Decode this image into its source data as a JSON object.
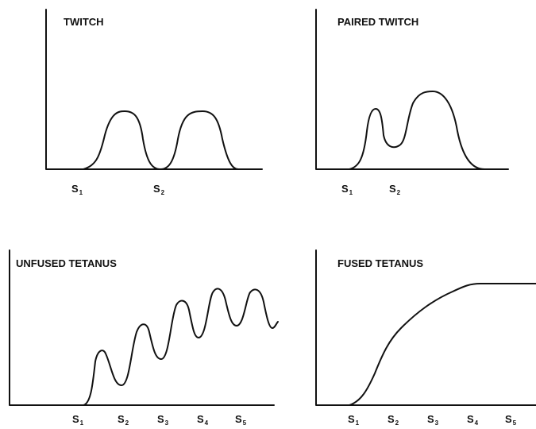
{
  "panels": [
    {
      "title": "TWITCH",
      "stimuli": [
        {
          "base": "S",
          "sub": "1"
        },
        {
          "base": "S",
          "sub": "2"
        }
      ]
    },
    {
      "title": "PAIRED TWITCH",
      "stimuli": [
        {
          "base": "S",
          "sub": "1"
        },
        {
          "base": "S",
          "sub": "2"
        }
      ]
    },
    {
      "title": "UNFUSED TETANUS",
      "stimuli": [
        {
          "base": "S",
          "sub": "1"
        },
        {
          "base": "S",
          "sub": "2"
        },
        {
          "base": "S",
          "sub": "3"
        },
        {
          "base": "S",
          "sub": "4"
        },
        {
          "base": "S",
          "sub": "5"
        }
      ]
    },
    {
      "title": "FUSED TETANUS",
      "stimuli": [
        {
          "base": "S",
          "sub": "1"
        },
        {
          "base": "S",
          "sub": "2"
        },
        {
          "base": "S",
          "sub": "3"
        },
        {
          "base": "S",
          "sub": "4"
        },
        {
          "base": "S",
          "sub": "5"
        }
      ]
    }
  ]
}
